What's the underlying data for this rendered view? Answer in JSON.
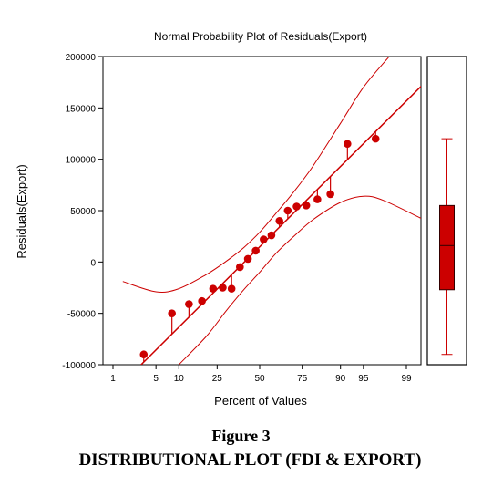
{
  "chart_data": {
    "type": "scatter",
    "title": "Normal Probability Plot of Residuals(Export)",
    "xlabel": "Percent of Values",
    "ylabel": "Residuals(Export)",
    "ylim": [
      -100000,
      200000
    ],
    "yticks": [
      -100000,
      -50000,
      0,
      50000,
      100000,
      150000,
      200000
    ],
    "ytick_labels": [
      "-100000",
      "-50000",
      "0",
      "50000",
      "100000",
      "150000",
      "200000"
    ],
    "xticks": [
      1,
      5,
      10,
      25,
      50,
      75,
      90,
      95,
      99
    ],
    "xtick_labels": [
      "1",
      "5",
      "10",
      "25",
      "50",
      "75",
      "90",
      "95",
      "99"
    ],
    "x_scale": "normal-probability",
    "colors": {
      "data": "#cc0000",
      "axis": "#000000"
    },
    "points": [
      {
        "pct": 3.3,
        "res": -90000
      },
      {
        "pct": 8.2,
        "res": -50000
      },
      {
        "pct": 13.1,
        "res": -41000
      },
      {
        "pct": 18.0,
        "res": -38000
      },
      {
        "pct": 23.0,
        "res": -26000
      },
      {
        "pct": 27.9,
        "res": -25000
      },
      {
        "pct": 32.8,
        "res": -26000
      },
      {
        "pct": 37.7,
        "res": -5000
      },
      {
        "pct": 42.6,
        "res": 3000
      },
      {
        "pct": 47.5,
        "res": 11000
      },
      {
        "pct": 52.5,
        "res": 22000
      },
      {
        "pct": 57.4,
        "res": 26000
      },
      {
        "pct": 62.3,
        "res": 40000
      },
      {
        "pct": 67.2,
        "res": 50000
      },
      {
        "pct": 72.1,
        "res": 54000
      },
      {
        "pct": 77.0,
        "res": 55000
      },
      {
        "pct": 82.0,
        "res": 61000
      },
      {
        "pct": 86.9,
        "res": 66000
      },
      {
        "pct": 91.8,
        "res": 115000
      },
      {
        "pct": 96.7,
        "res": 120000
      }
    ],
    "fit_line": {
      "pct": [
        3.0,
        99.5
      ],
      "res": [
        -100000,
        172000
      ]
    },
    "upper_band": {
      "pct": [
        1.5,
        5,
        10,
        20,
        30,
        40,
        50,
        60,
        70,
        80,
        90,
        95,
        98
      ],
      "res": [
        -19000,
        -29000,
        -26000,
        -12000,
        1000,
        14000,
        29000,
        47000,
        67000,
        93000,
        135000,
        170000,
        200000
      ]
    },
    "lower_band": {
      "pct": [
        10,
        20,
        30,
        40,
        50,
        60,
        70,
        80,
        90,
        95,
        97.5,
        99.5
      ],
      "res": [
        -100000,
        -72000,
        -47000,
        -27000,
        -10000,
        8000,
        24000,
        41000,
        58000,
        64000,
        60000,
        42000
      ]
    },
    "boxplot": {
      "min": -90000,
      "q1": -27000,
      "median": 16000,
      "q3": 55000,
      "max": 120000
    }
  },
  "figure": {
    "number": "Figure 3",
    "caption": "DISTRIBUTIONAL PLOT (FDI & EXPORT)"
  }
}
